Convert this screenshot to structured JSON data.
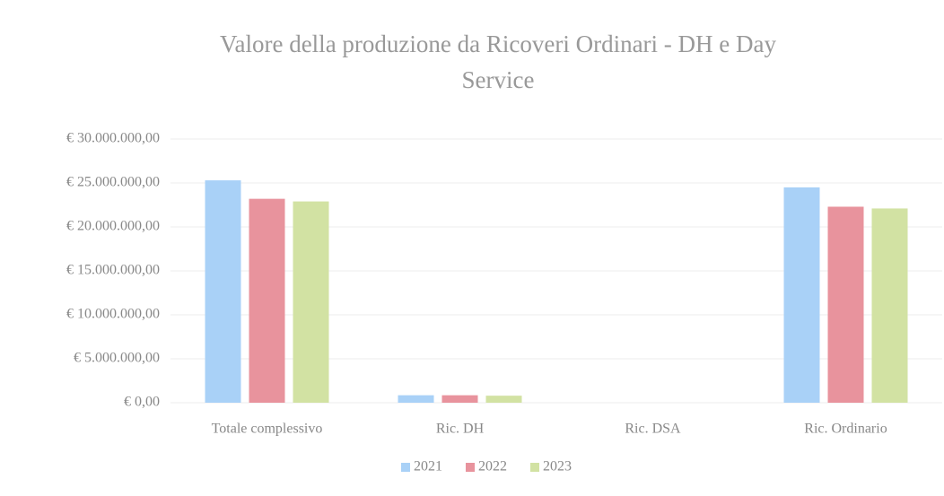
{
  "chart_data": {
    "type": "bar",
    "title": "Valore della produzione da Ricoveri Ordinari - DH e Day",
    "subtitle": "Service",
    "categories": [
      "Totale complessivo",
      "Ric. DH",
      "Ric. DSA",
      "Ric. Ordinario"
    ],
    "series": [
      {
        "name": "2021",
        "color": "#a9d1f7",
        "values": [
          25300000,
          850000,
          0,
          24500000
        ]
      },
      {
        "name": "2022",
        "color": "#e8939d",
        "values": [
          23200000,
          850000,
          0,
          22300000
        ]
      },
      {
        "name": "2023",
        "color": "#d2e2a3",
        "values": [
          22900000,
          800000,
          0,
          22100000
        ]
      }
    ],
    "ylim": [
      0,
      30000000
    ],
    "yticks": [
      {
        "value": 0,
        "label": "€ 0,00"
      },
      {
        "value": 5000000,
        "label": "€ 5.000.000,00"
      },
      {
        "value": 10000000,
        "label": "€ 10.000.000,00"
      },
      {
        "value": 15000000,
        "label": "€ 15.000.000,00"
      },
      {
        "value": 20000000,
        "label": "€ 20.000.000,00"
      },
      {
        "value": 25000000,
        "label": "€ 25.000.000,00"
      },
      {
        "value": 30000000,
        "label": "€ 30.000.000,00"
      }
    ],
    "grid": true,
    "legend": "bottom"
  }
}
